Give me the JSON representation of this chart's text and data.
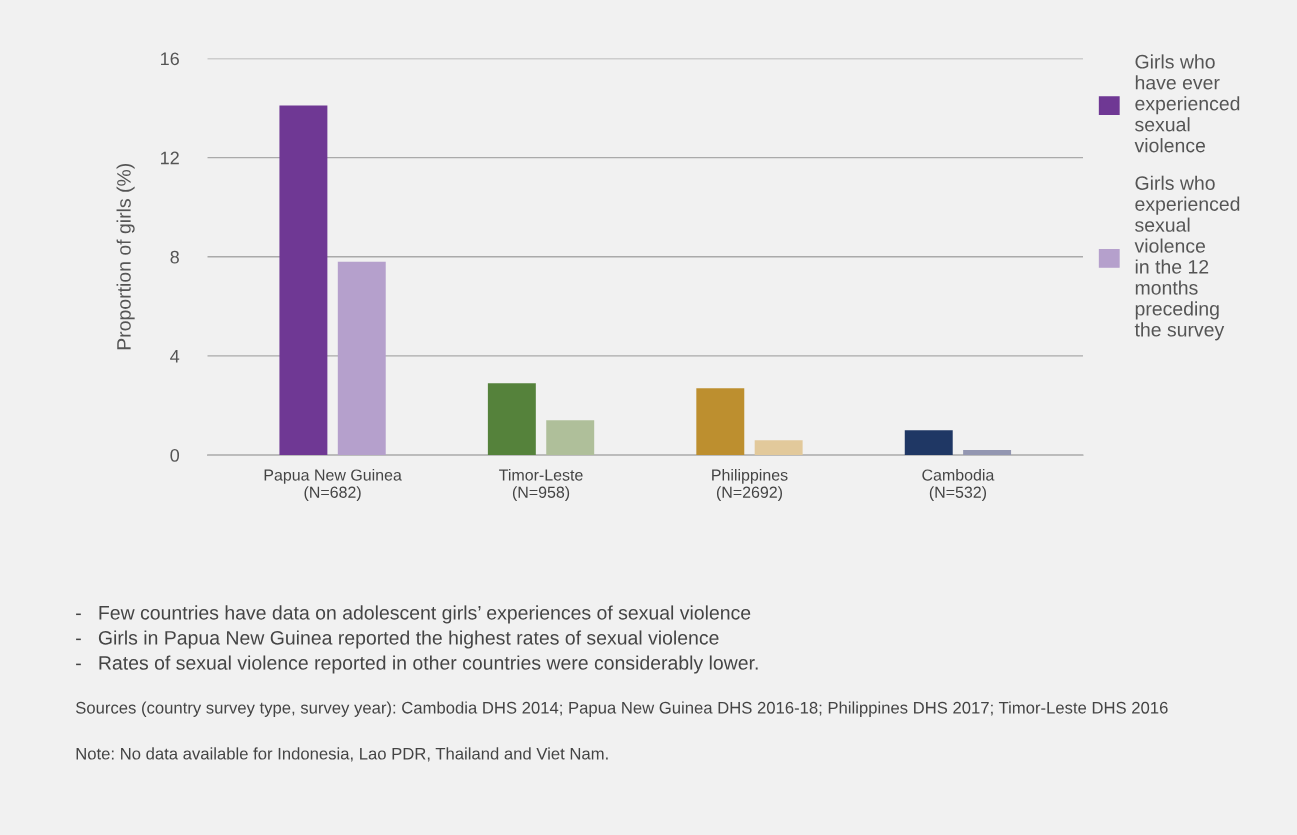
{
  "chart_data": {
    "type": "bar",
    "ylabel": "Proportion of girls (%)",
    "categories": [
      "Papua New Guinea\n(N=682)",
      "Timor-Leste\n(N=958)",
      "Philippines\n(N=2692)",
      "Cambodia\n(N=532)"
    ],
    "series": [
      {
        "name": "Girls who\nhave ever\nexperienced\nsexual\nviolence",
        "color": "#6f3894",
        "colors": [
          "#6f3894",
          "#55823b",
          "#bd8f2f",
          "#1f3764"
        ],
        "values": [
          14.1,
          2.9,
          2.7,
          1.0
        ]
      },
      {
        "name": "Girls who\nexperienced\nsexual\nviolence\nin the 12\nmonths\npreceding\nthe survey",
        "color": "#b5a0cc",
        "colors": [
          "#b5a0cc",
          "#afbf9a",
          "#e2c99b",
          "#9396b1"
        ],
        "values": [
          7.8,
          1.4,
          0.6,
          0.2
        ]
      }
    ],
    "ylim": [
      0,
      16
    ],
    "yticks": [
      0,
      4,
      8,
      12,
      16
    ],
    "grid": "y",
    "legend": "right",
    "annotations": [
      "-   Few countries have data on adolescent girls’ experiences of sexual violence",
      "-   Girls in Papua New Guinea reported the highest rates of sexual violence",
      "-   Rates of sexual violence reported in other countries were considerably lower.",
      "Sources (country survey type, survey year): Cambodia DHS 2014; Papua New Guinea DHS 2016-18; Philippines DHS 2017; Timor-Leste DHS 2016",
      "Note: No data available for Indonesia, Lao PDR, Thailand and Viet Nam."
    ]
  }
}
